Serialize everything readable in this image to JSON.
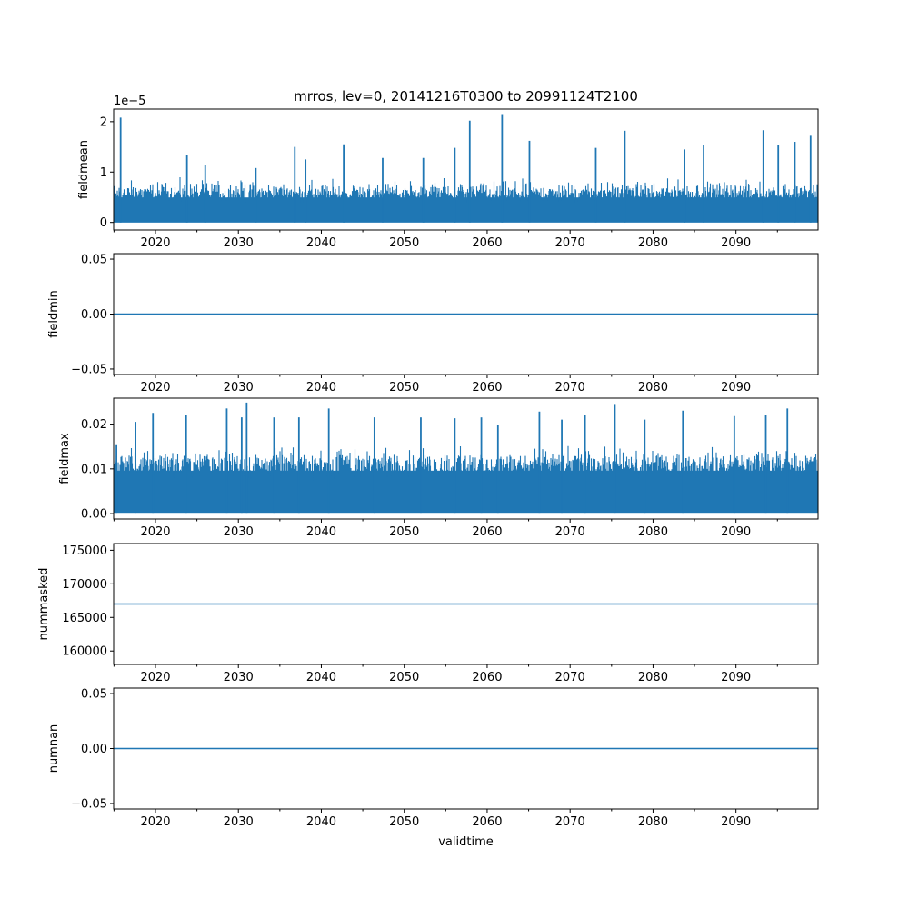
{
  "figure_title": "mrros, lev=0, 20141216T0300 to 20991124T2100",
  "xlabel": "validtime",
  "colors": {
    "series": "#1f77b4",
    "axes": "#000000",
    "background": "#ffffff"
  },
  "chart_data": [
    {
      "type": "line",
      "ylabel": "fieldmean",
      "offset_text": "1e−5",
      "scale_factor": 1e-05,
      "xlim": [
        2014.96,
        2099.9
      ],
      "ylim": [
        -0.15,
        2.25
      ],
      "yticks": [
        0,
        1,
        2
      ],
      "ytick_labels": [
        "0",
        "1",
        "2"
      ],
      "xticks": [
        2020,
        2030,
        2040,
        2050,
        2060,
        2070,
        2080,
        2090
      ],
      "xtick_labels": [
        "2020",
        "2030",
        "2040",
        "2050",
        "2060",
        "2070",
        "2080",
        "2090"
      ],
      "series_kind": "noisy",
      "baseline": 0.0,
      "typical_envelope": [
        0.62,
        0.95
      ],
      "peaks": [
        {
          "x": 2015.8,
          "y": 2.08
        },
        {
          "x": 2023.8,
          "y": 1.33
        },
        {
          "x": 2026.0,
          "y": 1.15
        },
        {
          "x": 2032.1,
          "y": 1.08
        },
        {
          "x": 2036.8,
          "y": 1.5
        },
        {
          "x": 2038.1,
          "y": 1.25
        },
        {
          "x": 2042.7,
          "y": 1.55
        },
        {
          "x": 2047.4,
          "y": 1.28
        },
        {
          "x": 2052.3,
          "y": 1.28
        },
        {
          "x": 2056.1,
          "y": 1.48
        },
        {
          "x": 2057.9,
          "y": 2.02
        },
        {
          "x": 2061.8,
          "y": 2.15
        },
        {
          "x": 2065.1,
          "y": 1.62
        },
        {
          "x": 2073.1,
          "y": 1.48
        },
        {
          "x": 2076.6,
          "y": 1.82
        },
        {
          "x": 2083.8,
          "y": 1.45
        },
        {
          "x": 2086.1,
          "y": 1.53
        },
        {
          "x": 2093.3,
          "y": 1.83
        },
        {
          "x": 2095.1,
          "y": 1.53
        },
        {
          "x": 2097.1,
          "y": 1.6
        },
        {
          "x": 2099.0,
          "y": 1.72
        }
      ]
    },
    {
      "type": "line",
      "ylabel": "fieldmin",
      "xlim": [
        2014.96,
        2099.9
      ],
      "ylim": [
        -0.055,
        0.055
      ],
      "yticks": [
        -0.05,
        0.0,
        0.05
      ],
      "ytick_labels": [
        "−0.05",
        "0.00",
        "0.05"
      ],
      "xticks": [
        2020,
        2030,
        2040,
        2050,
        2060,
        2070,
        2080,
        2090
      ],
      "xtick_labels": [
        "2020",
        "2030",
        "2040",
        "2050",
        "2060",
        "2070",
        "2080",
        "2090"
      ],
      "series_kind": "constant",
      "constant_value": 0.0
    },
    {
      "type": "line",
      "ylabel": "fieldmax",
      "xlim": [
        2014.96,
        2099.9
      ],
      "ylim": [
        -0.0012,
        0.0258
      ],
      "yticks": [
        0.0,
        0.01,
        0.02
      ],
      "ytick_labels": [
        "0.00",
        "0.01",
        "0.02"
      ],
      "xticks": [
        2020,
        2030,
        2040,
        2050,
        2060,
        2070,
        2080,
        2090
      ],
      "xtick_labels": [
        "2020",
        "2030",
        "2040",
        "2050",
        "2060",
        "2070",
        "2080",
        "2090"
      ],
      "series_kind": "noisy",
      "baseline": 0.0002,
      "typical_envelope": [
        0.012,
        0.016
      ],
      "peaks": [
        {
          "x": 2015.3,
          "y": 0.0155
        },
        {
          "x": 2017.6,
          "y": 0.0205
        },
        {
          "x": 2019.7,
          "y": 0.0225
        },
        {
          "x": 2023.7,
          "y": 0.022
        },
        {
          "x": 2028.6,
          "y": 0.0235
        },
        {
          "x": 2030.4,
          "y": 0.0215
        },
        {
          "x": 2031.0,
          "y": 0.0248
        },
        {
          "x": 2034.3,
          "y": 0.0215
        },
        {
          "x": 2037.3,
          "y": 0.0215
        },
        {
          "x": 2040.9,
          "y": 0.0235
        },
        {
          "x": 2046.4,
          "y": 0.0215
        },
        {
          "x": 2052.0,
          "y": 0.0215
        },
        {
          "x": 2056.1,
          "y": 0.0213
        },
        {
          "x": 2059.3,
          "y": 0.0215
        },
        {
          "x": 2061.3,
          "y": 0.0198
        },
        {
          "x": 2066.3,
          "y": 0.0228
        },
        {
          "x": 2069.0,
          "y": 0.021
        },
        {
          "x": 2071.8,
          "y": 0.022
        },
        {
          "x": 2075.4,
          "y": 0.0245
        },
        {
          "x": 2079.0,
          "y": 0.021
        },
        {
          "x": 2083.6,
          "y": 0.023
        },
        {
          "x": 2089.8,
          "y": 0.0218
        },
        {
          "x": 2093.6,
          "y": 0.022
        },
        {
          "x": 2096.2,
          "y": 0.0235
        }
      ]
    },
    {
      "type": "line",
      "ylabel": "nummasked",
      "xlim": [
        2014.96,
        2099.9
      ],
      "ylim": [
        158000,
        176000
      ],
      "yticks": [
        160000,
        165000,
        170000,
        175000
      ],
      "ytick_labels": [
        "160000",
        "165000",
        "170000",
        "175000"
      ],
      "xticks": [
        2020,
        2030,
        2040,
        2050,
        2060,
        2070,
        2080,
        2090
      ],
      "xtick_labels": [
        "2020",
        "2030",
        "2040",
        "2050",
        "2060",
        "2070",
        "2080",
        "2090"
      ],
      "series_kind": "constant",
      "constant_value": 167000
    },
    {
      "type": "line",
      "ylabel": "numnan",
      "xlim": [
        2014.96,
        2099.9
      ],
      "ylim": [
        -0.055,
        0.055
      ],
      "yticks": [
        -0.05,
        0.0,
        0.05
      ],
      "ytick_labels": [
        "−0.05",
        "0.00",
        "0.05"
      ],
      "xticks": [
        2020,
        2030,
        2040,
        2050,
        2060,
        2070,
        2080,
        2090
      ],
      "xtick_labels": [
        "2020",
        "2030",
        "2040",
        "2050",
        "2060",
        "2070",
        "2080",
        "2090"
      ],
      "series_kind": "constant",
      "constant_value": 0.0
    }
  ]
}
